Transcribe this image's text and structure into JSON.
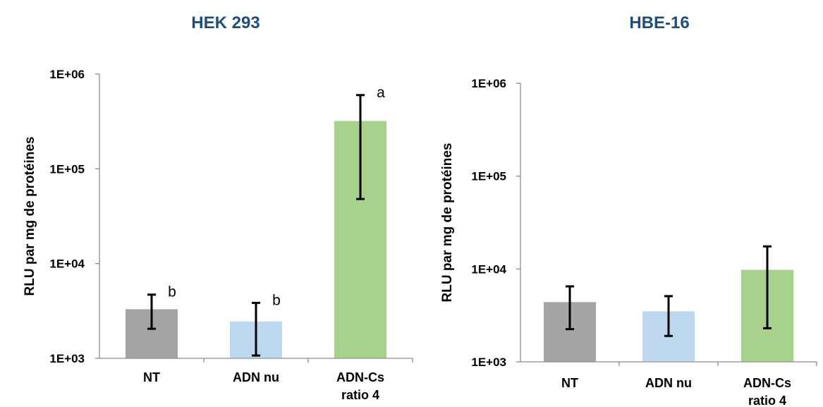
{
  "chart_data": [
    {
      "type": "bar",
      "title": "HEK 293",
      "ylabel": "RLU par mg de protéines",
      "yscale": "log",
      "ylim": [
        1000,
        1000000
      ],
      "ytick_labels": [
        "1E+03",
        "1E+04",
        "1E+05",
        "1E+06"
      ],
      "categories": [
        [
          "NT"
        ],
        [
          "ADN nu"
        ],
        [
          "ADN-Cs",
          "ratio 4"
        ]
      ],
      "values": [
        3300,
        2450,
        320000
      ],
      "error_low": [
        2050,
        1070,
        48000
      ],
      "error_high": [
        4700,
        3850,
        600000
      ],
      "annotations": [
        "b",
        "b",
        "a"
      ],
      "colors": [
        "#a6a3a3",
        "#bdd7ee",
        "#a9d18e"
      ]
    },
    {
      "type": "bar",
      "title": "HBE-16",
      "ylabel": "RLU par mg de protéines",
      "yscale": "log",
      "ylim": [
        1000,
        1000000
      ],
      "ytick_labels": [
        "1E+03",
        "1E+04",
        "1E+05",
        "1E+06"
      ],
      "categories": [
        [
          "NT"
        ],
        [
          "ADN nu"
        ],
        [
          "ADN-Cs",
          "ratio 4"
        ]
      ],
      "values": [
        4400,
        3500,
        9800
      ],
      "error_low": [
        2250,
        1900,
        2300
      ],
      "error_high": [
        6500,
        5100,
        17500
      ],
      "annotations": [
        "",
        "",
        ""
      ],
      "colors": [
        "#a6a3a3",
        "#bdd7ee",
        "#a9d18e"
      ]
    }
  ]
}
